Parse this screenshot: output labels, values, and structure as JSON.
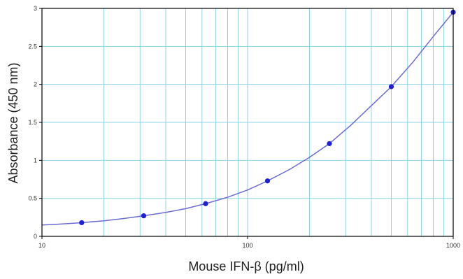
{
  "chart_data": {
    "type": "scatter",
    "xlabel": "Mouse IFN-β (pg/ml)",
    "ylabel": "Absorbance (450 nm)",
    "x_scale": "log",
    "xlim": [
      10,
      1000
    ],
    "ylim": [
      0,
      3
    ],
    "x_ticks": [
      "10",
      "100",
      "1000"
    ],
    "y_ticks": [
      "0",
      "0.5",
      "1",
      "1.5",
      "2",
      "2.5",
      "3"
    ],
    "grid": true,
    "legend": "none",
    "colors": {
      "grid": "#8fd3e8",
      "curve": "#6b6bd6",
      "points": "#1f1fd6",
      "axis": "#000000"
    },
    "series": [
      {
        "x": [
          15.6,
          31.25,
          62.5,
          125,
          250,
          500,
          1000
        ],
        "y": [
          0.18,
          0.27,
          0.43,
          0.73,
          1.22,
          1.97,
          2.95
        ]
      }
    ],
    "fit_curve": {
      "x": [
        10,
        12,
        15.6,
        20,
        25,
        31.25,
        40,
        50,
        62.5,
        80,
        100,
        125,
        160,
        200,
        250,
        320,
        400,
        500,
        640,
        800,
        1000
      ],
      "y": [
        0.15,
        0.16,
        0.18,
        0.205,
        0.235,
        0.27,
        0.315,
        0.365,
        0.43,
        0.515,
        0.61,
        0.73,
        0.88,
        1.04,
        1.22,
        1.47,
        1.72,
        1.97,
        2.3,
        2.63,
        2.95
      ]
    }
  }
}
